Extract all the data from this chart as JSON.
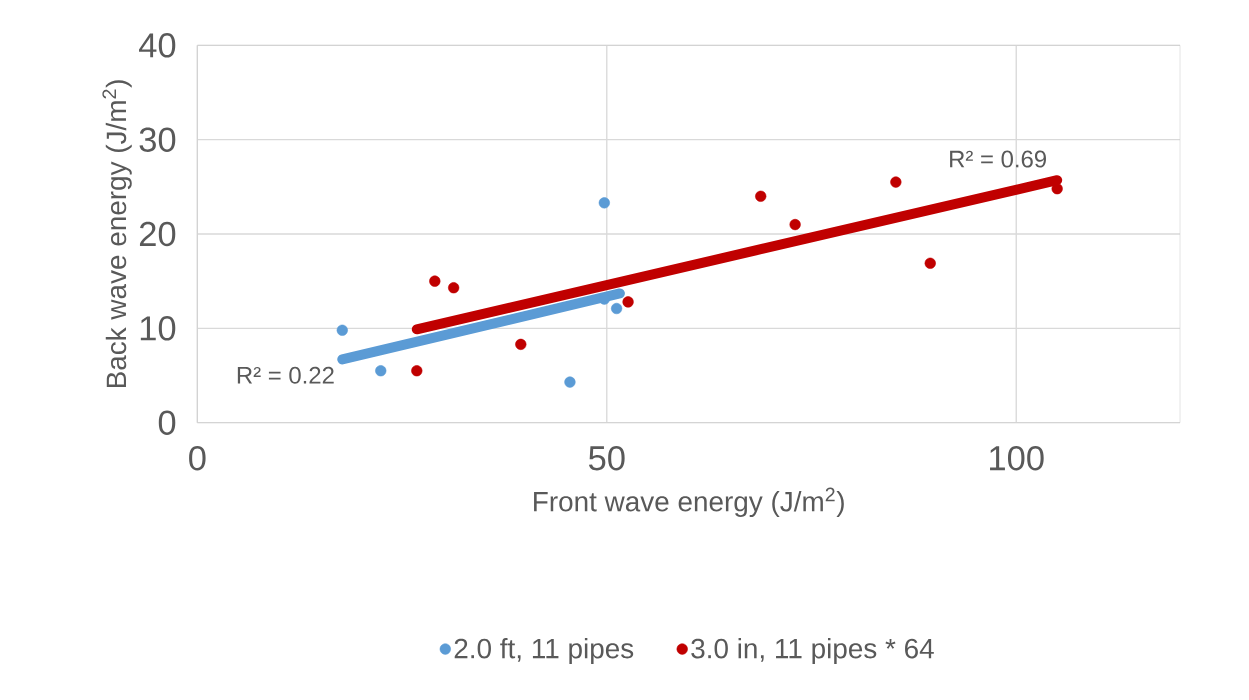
{
  "chart_data": {
    "type": "scatter",
    "xlabel": "Front wave energy (J/m$^{2}$)",
    "ylabel": "Back wave energy (J/m$^{2}$)",
    "xlim": [
      0,
      120
    ],
    "ylim": [
      0,
      40
    ],
    "xticks": [
      0,
      50,
      100
    ],
    "yticks": [
      0,
      10,
      20,
      30,
      40
    ],
    "grid": true,
    "legend": "bottom",
    "series": [
      {
        "name": "2.0 ft, 11 pipes",
        "marker": "circle",
        "color": "#5b9bd5",
        "x": [
          17.7,
          22.4,
          45.5,
          49.7,
          49.7,
          51.2
        ],
        "values": [
          9.8,
          5.5,
          4.3,
          23.3,
          13.1,
          12.1
        ]
      },
      {
        "name": "3.0 in, 11 pipes * 64",
        "marker": "circle",
        "color": "#c00000",
        "x": [
          26.8,
          29.0,
          31.3,
          39.5,
          52.6,
          68.8,
          73.0,
          85.3,
          89.5,
          105.0
        ],
        "values": [
          5.5,
          15.0,
          14.3,
          8.3,
          12.8,
          24.0,
          21.0,
          25.5,
          16.9,
          24.8
        ]
      },
      {
        "type": "line",
        "marker": "none",
        "color": "#5b9bd5",
        "x": [
          17.7,
          51.6
        ],
        "values": [
          6.7,
          13.7
        ]
      },
      {
        "type": "line",
        "marker": "none",
        "color": "#c00000",
        "x": [
          26.8,
          105.0
        ],
        "values": [
          9.9,
          25.7
        ]
      }
    ],
    "annotations": [
      {
        "text": "R² = 0.22",
        "x": 17.7,
        "y": 6.7
      },
      {
        "text": "R² = 0.69",
        "x": 105.0,
        "y": 25.7
      }
    ]
  }
}
